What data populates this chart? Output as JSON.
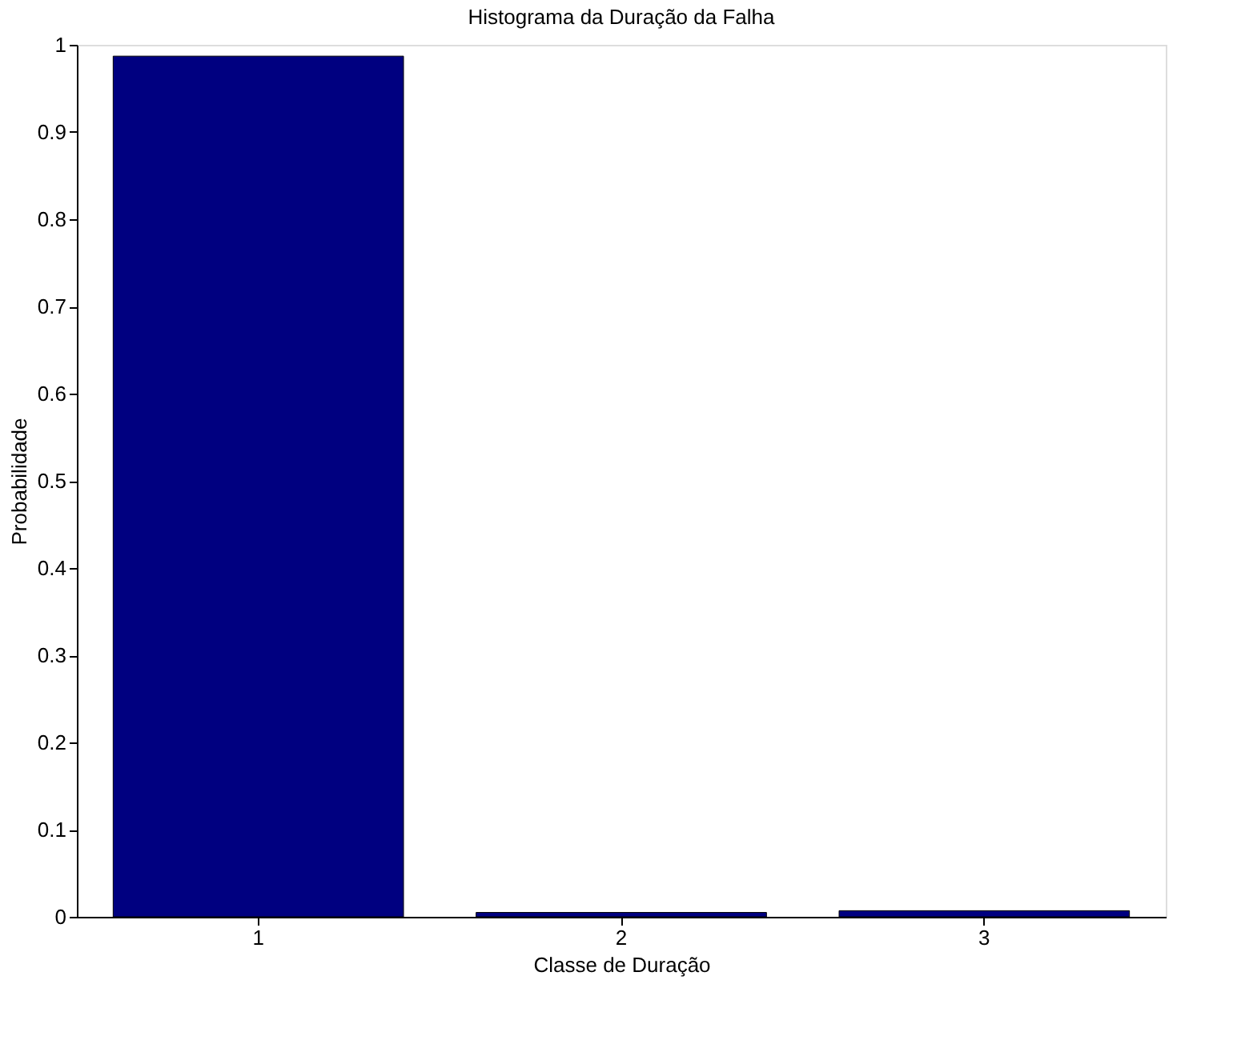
{
  "chart_data": {
    "type": "bar",
    "title": "Histograma da Duração da Falha",
    "xlabel": "Classe de Duração",
    "ylabel": "Probabilidade",
    "categories": [
      "1",
      "2",
      "3"
    ],
    "series": [
      {
        "color": "#000080",
        "values": [
          0.987,
          0.005,
          0.007
        ]
      }
    ],
    "ylim": [
      0,
      1
    ],
    "yticks": [
      0,
      0.1,
      0.2,
      0.3,
      0.4,
      0.5,
      0.6,
      0.7,
      0.8,
      0.9,
      1
    ],
    "grid": false
  }
}
